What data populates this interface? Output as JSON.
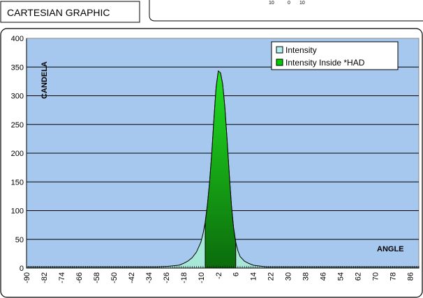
{
  "header": {
    "title": "CARTESIAN GRAPHIC",
    "fragment_labels": [
      "10",
      "0",
      "10"
    ]
  },
  "colors": {
    "plot_bg": "#a6c8ee",
    "intensity_fill": "#a8e8d8",
    "had_fill_light": "#22e022",
    "had_fill_dark": "#0b6b0b",
    "legend_intensity": "#b4f0f0",
    "legend_had": "#00cc00"
  },
  "chart_data": {
    "type": "area",
    "ylabel": "CANDELA",
    "xlabel": "ANGLE",
    "ylim": [
      0,
      400
    ],
    "xlim": [
      -90,
      90
    ],
    "yticks": [
      0,
      50,
      100,
      150,
      200,
      250,
      300,
      350,
      400
    ],
    "xticks": [
      -90,
      -82,
      -74,
      -66,
      -58,
      -50,
      -42,
      -34,
      -26,
      -18,
      -10,
      -2,
      6,
      14,
      22,
      30,
      38,
      46,
      54,
      62,
      70,
      78,
      86
    ],
    "grid": true,
    "legend_position": "top-right",
    "had_range": [
      -8,
      6
    ],
    "series": [
      {
        "name": "Intensity",
        "x": [
          -90,
          -30,
          -25,
          -20,
          -18,
          -16,
          -14,
          -12,
          -10,
          -9,
          -8,
          -7,
          -6,
          -5,
          -4,
          -3,
          -2,
          -1,
          0,
          1,
          2,
          3,
          4,
          5,
          6,
          7,
          8,
          10,
          12,
          14,
          16,
          18,
          20,
          25,
          30,
          90
        ],
        "values": [
          2,
          2,
          3,
          5,
          8,
          12,
          18,
          28,
          45,
          60,
          80,
          110,
          150,
          200,
          260,
          315,
          343,
          340,
          320,
          280,
          225,
          165,
          110,
          70,
          45,
          30,
          20,
          12,
          8,
          5,
          4,
          3,
          2,
          2,
          2,
          2
        ]
      },
      {
        "name": "Intensity Inside *HAD",
        "x": [
          -8,
          -7,
          -6,
          -5,
          -4,
          -3,
          -2,
          -1,
          0,
          1,
          2,
          3,
          4,
          5,
          6
        ],
        "values": [
          80,
          110,
          150,
          200,
          260,
          315,
          343,
          340,
          320,
          280,
          225,
          165,
          110,
          70,
          45
        ]
      }
    ]
  }
}
